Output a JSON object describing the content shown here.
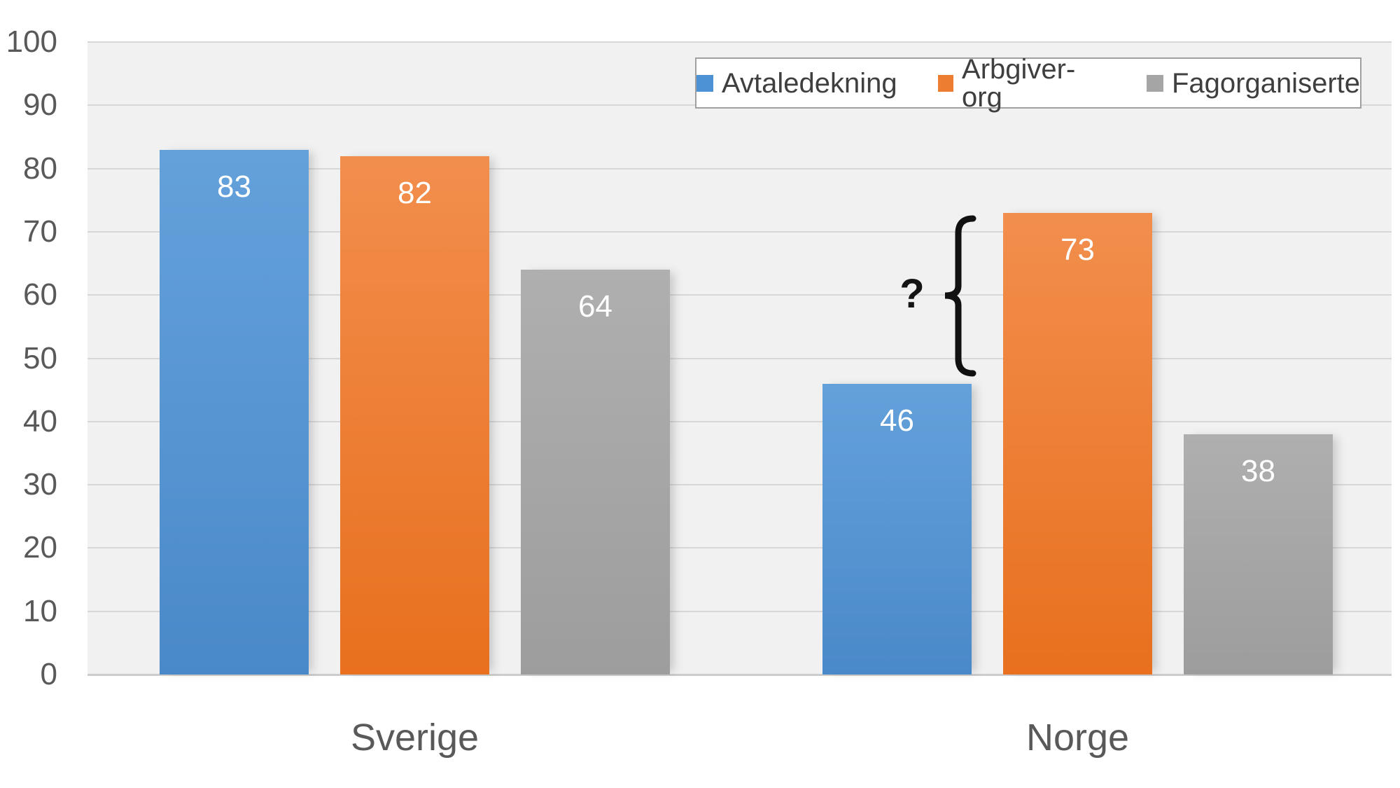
{
  "chart_data": {
    "type": "bar",
    "categories": [
      "Sverige",
      "Norge"
    ],
    "series": [
      {
        "name": "Avtaledekning",
        "color": "#4e92d6",
        "values": [
          83,
          46
        ]
      },
      {
        "name": "Arbgiver-org",
        "color": "#ed7d31",
        "values": [
          82,
          73
        ]
      },
      {
        "name": "Fagorganiserte",
        "color": "#a5a5a5",
        "values": [
          64,
          38
        ]
      }
    ],
    "title": "",
    "xlabel": "",
    "ylabel": "",
    "ylim": [
      0,
      100
    ],
    "yticks": [
      0,
      10,
      20,
      30,
      40,
      50,
      60,
      70,
      80,
      90,
      100
    ],
    "grid": true,
    "legend_position": "top-right",
    "plot_background": "#f1f1f1",
    "annotation": {
      "text": "?",
      "target": "gap between Norge Avtaledekning (46) and Arbgiver-org (73)"
    }
  }
}
